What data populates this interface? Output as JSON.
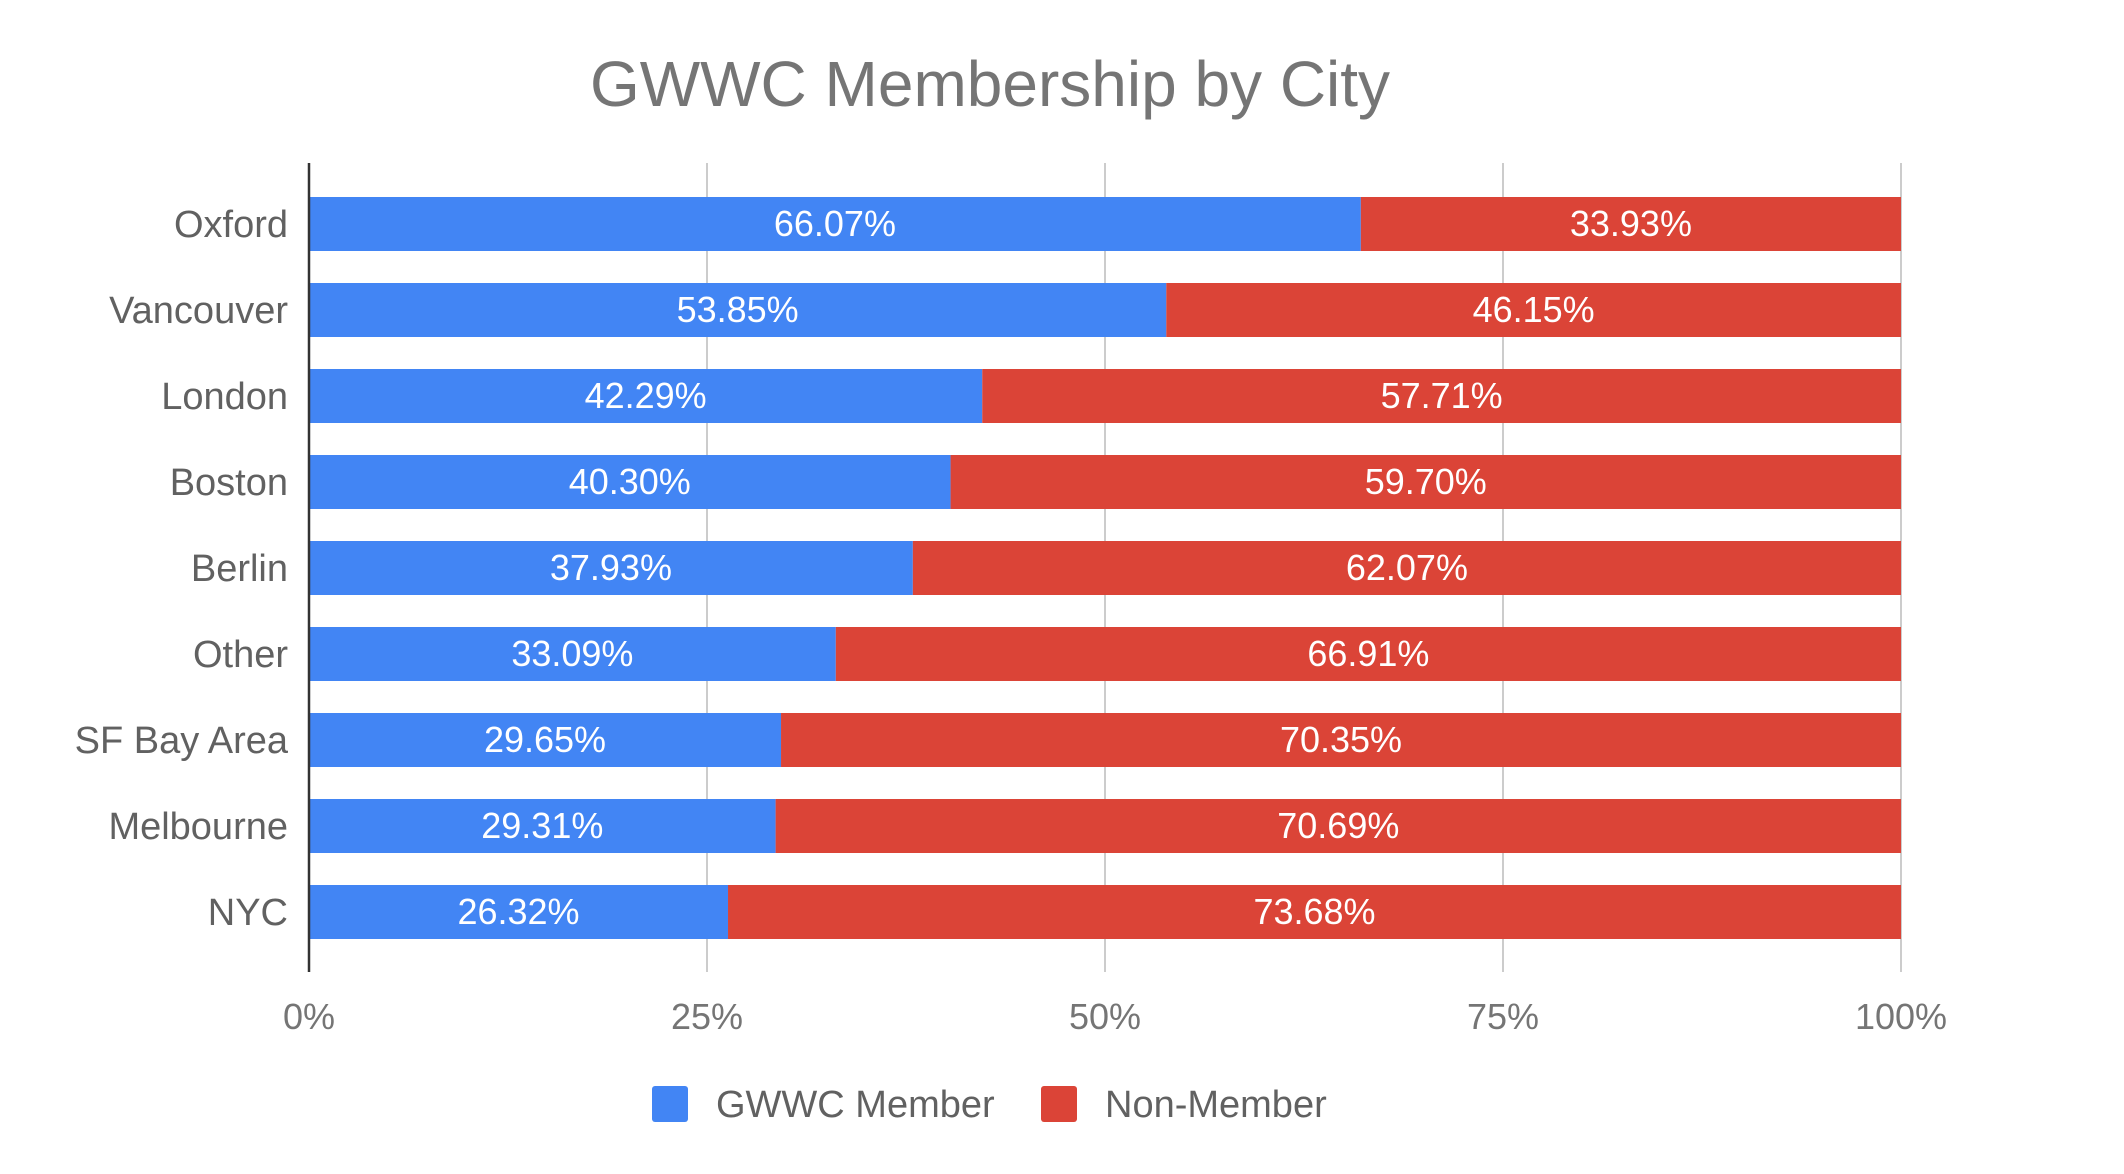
{
  "chart_data": {
    "type": "bar",
    "orientation": "horizontal",
    "stacked": true,
    "title": "GWWC Membership by City",
    "xlabel": "",
    "ylabel": "",
    "xlim": [
      0,
      100
    ],
    "x_ticks": [
      "0%",
      "25%",
      "50%",
      "75%",
      "100%"
    ],
    "grid": true,
    "legend_position": "bottom",
    "categories": [
      "Oxford",
      "Vancouver",
      "London",
      "Boston",
      "Berlin",
      "Other",
      "SF Bay Area",
      "Melbourne",
      "NYC"
    ],
    "series": [
      {
        "name": "GWWC Member",
        "color": "#4285f4",
        "values": [
          66.07,
          53.85,
          42.29,
          40.3,
          37.93,
          33.09,
          29.65,
          29.31,
          26.32
        ],
        "labels": [
          "66.07%",
          "53.85%",
          "42.29%",
          "40.30%",
          "37.93%",
          "33.09%",
          "29.65%",
          "29.31%",
          "26.32%"
        ]
      },
      {
        "name": "Non-Member",
        "color": "#db4437",
        "values": [
          33.93,
          46.15,
          57.71,
          59.7,
          62.07,
          66.91,
          70.35,
          70.69,
          73.68
        ],
        "labels": [
          "33.93%",
          "46.15%",
          "57.71%",
          "59.70%",
          "62.07%",
          "66.91%",
          "70.35%",
          "70.69%",
          "73.68%"
        ]
      }
    ]
  }
}
